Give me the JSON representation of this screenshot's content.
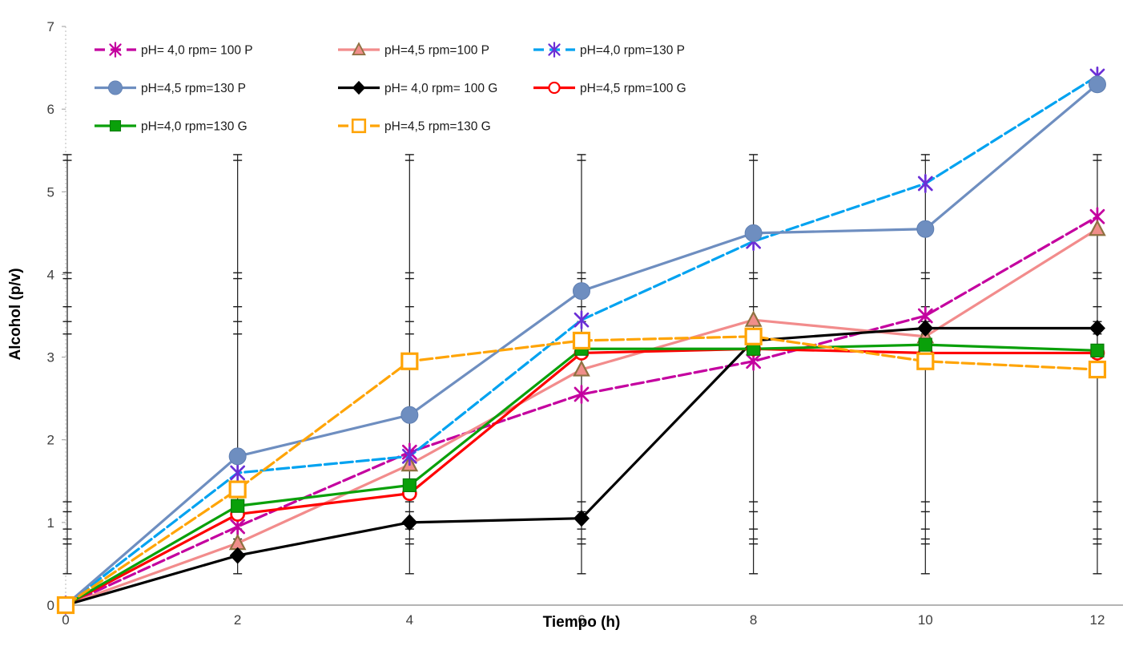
{
  "chart_data": {
    "type": "line",
    "title": "",
    "xlabel": "Tiempo (h)",
    "ylabel": "Alcohol (p/v)",
    "x": [
      0,
      2,
      4,
      6,
      8,
      10,
      12
    ],
    "x_tick_labels": [
      "0",
      "2",
      "4",
      "6",
      "8",
      "10",
      "12"
    ],
    "y_tick_labels": [
      "0",
      "1",
      "2",
      "3",
      "4",
      "5",
      "6",
      "7"
    ],
    "xlim": [
      0,
      12.35
    ],
    "ylim": [
      0,
      7
    ],
    "grid": false,
    "legend_position": "inside-top-left",
    "series": [
      {
        "name": "pH= 4,0 rpm= 100 P",
        "color": "#C4009F",
        "line": "dashed",
        "marker": "star-x",
        "marker_color": "#C4009F",
        "values": [
          0,
          0.95,
          1.85,
          2.55,
          2.95,
          3.5,
          4.7
        ]
      },
      {
        "name": "pH=4,5 rpm=100 P",
        "color": "#F28C8C",
        "line": "solid",
        "marker": "triangle",
        "marker_fill": "#F08E8A",
        "marker_border": "#8E7141",
        "values": [
          0,
          0.75,
          1.7,
          2.85,
          3.45,
          3.25,
          4.55
        ]
      },
      {
        "name": "pH=4,0 rpm=130 P",
        "color": "#00A2F0",
        "line": "dashed",
        "marker": "star-x",
        "marker_color": "#6B2FD6",
        "values": [
          0,
          1.6,
          1.8,
          3.45,
          4.4,
          5.1,
          6.4
        ]
      },
      {
        "name": "pH=4,5 rpm=130 P",
        "color": "#6E8EC0",
        "line": "solid",
        "marker": "circle",
        "marker_fill": "#6E8EC0",
        "marker_border": "#5F7FB2",
        "values": [
          0,
          1.8,
          2.3,
          3.8,
          4.5,
          4.55,
          6.3
        ]
      },
      {
        "name": "pH= 4,0 rpm= 100 G",
        "color": "#000000",
        "line": "solid",
        "marker": "diamond",
        "marker_fill": "#000000",
        "values": [
          0,
          0.6,
          1.0,
          1.05,
          3.2,
          3.35,
          3.35
        ]
      },
      {
        "name": "pH=4,5 rpm=100 G",
        "color": "#FE0000",
        "line": "solid",
        "marker": "open-circle",
        "marker_fill": "#FFFFFF",
        "marker_border": "#FE0000",
        "values": [
          0,
          1.1,
          1.35,
          3.05,
          3.1,
          3.05,
          3.05
        ]
      },
      {
        "name": "pH=4,0 rpm=130 G",
        "color": "#0AA00A",
        "line": "solid",
        "marker": "square",
        "marker_fill": "#0AA00A",
        "marker_border": "#087A08",
        "values": [
          0,
          1.2,
          1.45,
          3.1,
          3.1,
          3.15,
          3.08
        ]
      },
      {
        "name": "pH=4,5 rpm=130 G",
        "color": "#FFA406",
        "line": "dashed",
        "marker": "open-square",
        "marker_fill": "#FFFFFF",
        "marker_border": "#FFA406",
        "values": [
          0,
          1.4,
          2.95,
          3.2,
          3.25,
          2.95,
          2.85
        ]
      }
    ],
    "error_bars": {
      "color": "#1a1a1a",
      "x_positions": [
        0,
        2,
        4,
        6,
        8,
        10,
        12
      ],
      "span": [
        0.38,
        5.45
      ],
      "cap_values": [
        5.45,
        5.38,
        4.02,
        3.95,
        3.61,
        3.43,
        3.28,
        1.25,
        1.13,
        0.92,
        0.8,
        0.74,
        0.38
      ]
    },
    "axis_colors": {
      "axis_line": "#9B9B9B",
      "tick_label": "#3F3F3F"
    }
  },
  "legend": {
    "columns": 3,
    "rows": 3,
    "entries": [
      "pH= 4,0 rpm= 100 P",
      "pH=4,5 rpm=100 P",
      "pH=4,0 rpm=130 P",
      "pH=4,5 rpm=130 P",
      "pH= 4,0 rpm= 100 G",
      "pH=4,5 rpm=100 G",
      "pH=4,0 rpm=130 G",
      "pH=4,5 rpm=130 G"
    ]
  }
}
